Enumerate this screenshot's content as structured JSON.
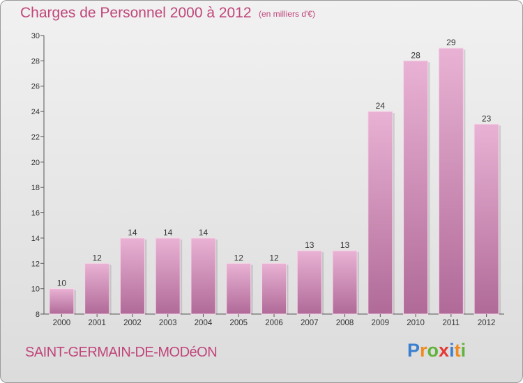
{
  "header": {
    "title": "Charges de Personnel 2000 à 2012",
    "subtitle": "(en milliers d'€)"
  },
  "footer": {
    "city": "SAINT-GERMAIN-DE-MODéON",
    "logo": "Proxiti",
    "logo_colors": [
      "#3b7fd0",
      "#f08a1e",
      "#62b33c",
      "#e53935",
      "#3b7fd0",
      "#f08a1e",
      "#62b33c"
    ]
  },
  "colors": {
    "bar_top": "#e9b2d4",
    "bar_bottom": "#b06a98",
    "text": "#c0457a",
    "axis": "#555555"
  },
  "chart_data": {
    "type": "bar",
    "categories": [
      "2000",
      "2001",
      "2002",
      "2003",
      "2004",
      "2005",
      "2006",
      "2007",
      "2008",
      "2009",
      "2010",
      "2011",
      "2012"
    ],
    "values": [
      10,
      12,
      14,
      14,
      14,
      12,
      12,
      13,
      13,
      24,
      28,
      29,
      23
    ],
    "ylim": [
      8,
      30
    ],
    "yticks": [
      8,
      10,
      12,
      14,
      16,
      18,
      20,
      22,
      24,
      26,
      28,
      30
    ],
    "data_labels": true,
    "grid": false,
    "legend": "none"
  }
}
